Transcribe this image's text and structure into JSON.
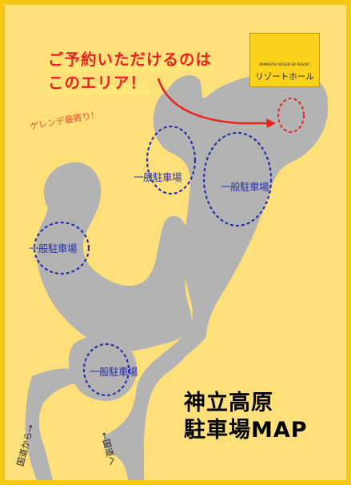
{
  "notice": {
    "line1": "ご予約いただけるのは",
    "line2": "このエリア！"
  },
  "gelande_note": "ゲレンデ最寄り！",
  "resort": {
    "name": "リゾートホール",
    "logo_text": "KAMIKATSU KOGEN SKI RESORT",
    "logo_icon": "bird-logo-icon"
  },
  "parking_lots": [
    {
      "id": "lot-upper",
      "label": "一般駐車場"
    },
    {
      "id": "lot-right",
      "label": "一般駐車場"
    },
    {
      "id": "lot-left",
      "label": "一般駐車場"
    },
    {
      "id": "lot-lower",
      "label": "一般駐車場"
    }
  ],
  "reserved_area": {
    "id": "reserved-area",
    "label": ""
  },
  "roads": {
    "from_national": "国道から→",
    "to_national": "←国道へ"
  },
  "title": {
    "line1": "神立高原",
    "line2": "駐車場MAP"
  },
  "colors": {
    "background": "#fde07a",
    "border": "#f6c814",
    "parking": "#b3b3b3",
    "lot_outline": "#2a2fa8",
    "notice": "#e8231e",
    "arrow": "#e8231e"
  }
}
